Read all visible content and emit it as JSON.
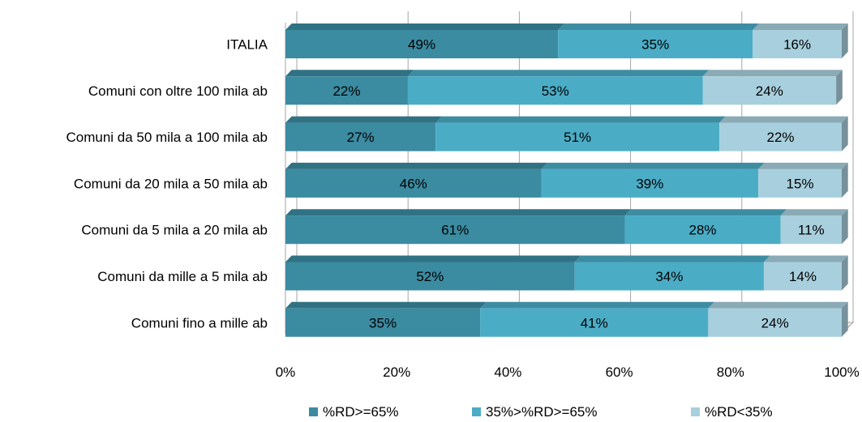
{
  "chart_data": {
    "type": "bar",
    "orientation": "horizontal",
    "stacked": true,
    "three_d": true,
    "categories": [
      "ITALIA",
      "Comuni con oltre 100 mila ab",
      "Comuni da 50 mila a 100 mila ab",
      "Comuni da 20 mila a 50 mila ab",
      "Comuni da 5 mila a 20 mila ab",
      "Comuni da mille a 5 mila ab",
      "Comuni fino a mille ab"
    ],
    "series": [
      {
        "name": "%RD>=65%",
        "color": "#3B8BA1",
        "values": [
          49,
          22,
          27,
          46,
          61,
          52,
          35
        ]
      },
      {
        "name": "35%>%RD>=65%",
        "color": "#4BACC6",
        "values": [
          35,
          53,
          51,
          39,
          28,
          34,
          41
        ]
      },
      {
        "name": "%RD<35%",
        "color": "#A8CFDD",
        "values": [
          16,
          24,
          22,
          15,
          11,
          14,
          24
        ]
      }
    ],
    "x_ticks": [
      "0%",
      "20%",
      "40%",
      "60%",
      "80%",
      "100%"
    ],
    "xlim": [
      0,
      100
    ],
    "grid": true,
    "legend_position": "bottom"
  }
}
